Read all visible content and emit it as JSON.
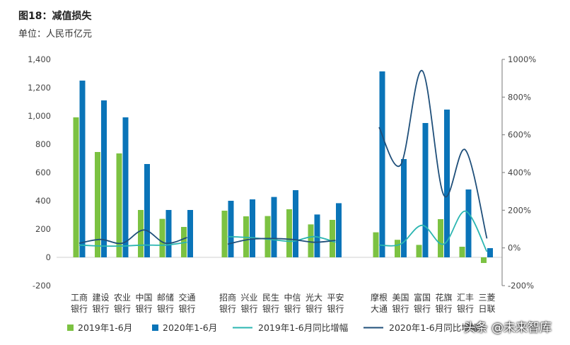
{
  "title": "图18：减值损失",
  "subtitle": "单位：人民币亿元",
  "watermark": "头条 @未来智库",
  "chart_data": {
    "type": "bar",
    "left_axis": {
      "min": -200,
      "max": 1400,
      "step": 200,
      "tick_labels": [
        "-200",
        "0",
        "200",
        "400",
        "600",
        "800",
        "1,000",
        "1,200",
        "1,400"
      ]
    },
    "right_axis": {
      "min": -200,
      "max": 1000,
      "step": 200,
      "tick_labels": [
        "-200%",
        "0%",
        "200%",
        "400%",
        "600%",
        "800%",
        "1000%"
      ]
    },
    "groups": [
      {
        "categories": [
          {
            "line1": "工商",
            "line2": "银行"
          },
          {
            "line1": "建设",
            "line2": "银行"
          },
          {
            "line1": "农业",
            "line2": "银行"
          },
          {
            "line1": "中国",
            "line2": "银行"
          },
          {
            "line1": "邮储",
            "line2": "银行"
          },
          {
            "line1": "交通",
            "line2": "银行"
          }
        ],
        "bar2019": [
          990,
          745,
          735,
          335,
          272,
          215
        ],
        "bar2020": [
          1250,
          1110,
          990,
          660,
          335,
          335
        ],
        "yoy2019": [
          15,
          10,
          10,
          15,
          15,
          30
        ],
        "yoy2020": [
          25,
          45,
          25,
          95,
          25,
          55
        ]
      },
      {
        "categories": [
          {
            "line1": "招商",
            "line2": "银行"
          },
          {
            "line1": "兴业",
            "line2": "银行"
          },
          {
            "line1": "民生",
            "line2": "银行"
          },
          {
            "line1": "中信",
            "line2": "银行"
          },
          {
            "line1": "光大",
            "line2": "银行"
          },
          {
            "line1": "平安",
            "line2": "银行"
          }
        ],
        "bar2019": [
          330,
          290,
          292,
          340,
          233,
          265
        ],
        "bar2020": [
          400,
          410,
          427,
          475,
          303,
          383
        ],
        "yoy2019": [
          60,
          55,
          45,
          35,
          60,
          30
        ],
        "yoy2020": [
          20,
          45,
          50,
          45,
          30,
          40
        ]
      },
      {
        "categories": [
          {
            "line1": "摩根",
            "line2": "大通"
          },
          {
            "line1": "美国",
            "line2": "银行"
          },
          {
            "line1": "富国",
            "line2": "银行"
          },
          {
            "line1": "花旗",
            "line2": "银行"
          },
          {
            "line1": "汇丰",
            "line2": "银行"
          },
          {
            "line1": "三菱",
            "line2": "日联"
          }
        ],
        "bar2019": [
          177,
          124,
          88,
          270,
          75,
          -40
        ],
        "bar2020": [
          1315,
          695,
          950,
          1045,
          480,
          65
        ],
        "yoy2019": [
          15,
          20,
          120,
          20,
          195,
          -20
        ],
        "yoy2020": [
          640,
          440,
          940,
          280,
          520,
          50
        ]
      }
    ],
    "legend": [
      {
        "label": "2019年1-6月",
        "kind": "bar",
        "color": "#7cc242"
      },
      {
        "label": "2020年1-6月",
        "kind": "bar",
        "color": "#0a74b8"
      },
      {
        "label": "2019年1-6月同比增幅",
        "kind": "line",
        "color": "#2bb5b1"
      },
      {
        "label": "2020年1-6月同比增幅",
        "kind": "line",
        "color": "#1f4f7a"
      }
    ]
  }
}
